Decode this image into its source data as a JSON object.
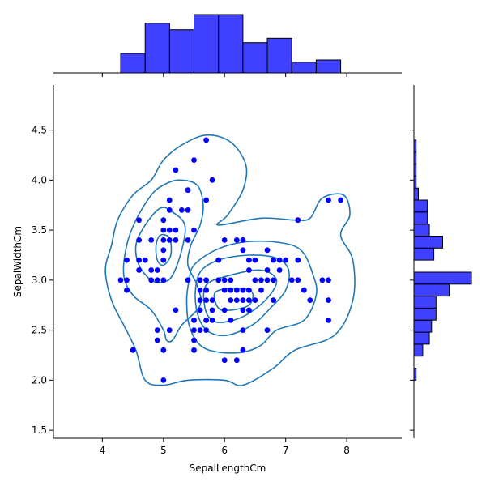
{
  "chart_data": {
    "type": "scatter",
    "xlabel": "SepalLengthCm",
    "ylabel": "SepalWidthCm",
    "xlim": [
      3.2,
      8.9
    ],
    "ylim": [
      1.42,
      4.95
    ],
    "x_ticks": [
      "4",
      "5",
      "6",
      "7",
      "8"
    ],
    "y_ticks": [
      "1.5",
      "2.0",
      "2.5",
      "3.0",
      "3.5",
      "4.0",
      "4.5"
    ],
    "point_color": "#0000ff",
    "contour_color": "#1f77b4",
    "hist_color": "#0000ff",
    "points": [
      [
        5.7,
        4.4
      ],
      [
        5.5,
        4.2
      ],
      [
        5.2,
        4.1
      ],
      [
        5.8,
        4.0
      ],
      [
        5.4,
        3.9
      ],
      [
        5.1,
        3.8
      ],
      [
        5.7,
        3.8
      ],
      [
        7.7,
        3.8
      ],
      [
        7.9,
        3.8
      ],
      [
        5.1,
        3.7
      ],
      [
        5.3,
        3.7
      ],
      [
        5.4,
        3.7
      ],
      [
        4.6,
        3.6
      ],
      [
        5.0,
        3.6
      ],
      [
        7.2,
        3.6
      ],
      [
        5.0,
        3.5
      ],
      [
        5.1,
        3.5
      ],
      [
        5.2,
        3.5
      ],
      [
        5.5,
        3.5
      ],
      [
        4.6,
        3.4
      ],
      [
        4.8,
        3.4
      ],
      [
        5.0,
        3.4
      ],
      [
        5.1,
        3.4
      ],
      [
        5.2,
        3.4
      ],
      [
        5.4,
        3.4
      ],
      [
        6.0,
        3.4
      ],
      [
        6.2,
        3.4
      ],
      [
        6.3,
        3.4
      ],
      [
        5.0,
        3.3
      ],
      [
        6.3,
        3.3
      ],
      [
        6.7,
        3.3
      ],
      [
        4.4,
        3.2
      ],
      [
        4.6,
        3.2
      ],
      [
        4.7,
        3.2
      ],
      [
        5.0,
        3.2
      ],
      [
        5.9,
        3.2
      ],
      [
        6.4,
        3.2
      ],
      [
        6.5,
        3.2
      ],
      [
        6.8,
        3.2
      ],
      [
        6.9,
        3.2
      ],
      [
        7.0,
        3.2
      ],
      [
        7.2,
        3.2
      ],
      [
        4.6,
        3.1
      ],
      [
        4.8,
        3.1
      ],
      [
        4.9,
        3.1
      ],
      [
        6.4,
        3.1
      ],
      [
        6.7,
        3.1
      ],
      [
        6.9,
        3.1
      ],
      [
        4.3,
        3.0
      ],
      [
        4.4,
        3.0
      ],
      [
        4.8,
        3.0
      ],
      [
        4.9,
        3.0
      ],
      [
        5.0,
        3.0
      ],
      [
        5.4,
        3.0
      ],
      [
        5.6,
        3.0
      ],
      [
        5.7,
        3.0
      ],
      [
        5.9,
        3.0
      ],
      [
        6.0,
        3.0
      ],
      [
        6.1,
        3.0
      ],
      [
        6.5,
        3.0
      ],
      [
        6.6,
        3.0
      ],
      [
        6.7,
        3.0
      ],
      [
        6.8,
        3.0
      ],
      [
        7.1,
        3.0
      ],
      [
        7.2,
        3.0
      ],
      [
        7.6,
        3.0
      ],
      [
        7.7,
        3.0
      ],
      [
        4.4,
        2.9
      ],
      [
        5.6,
        2.9
      ],
      [
        5.7,
        2.9
      ],
      [
        6.0,
        2.9
      ],
      [
        6.1,
        2.9
      ],
      [
        6.2,
        2.9
      ],
      [
        6.3,
        2.9
      ],
      [
        6.4,
        2.9
      ],
      [
        6.6,
        2.9
      ],
      [
        7.3,
        2.9
      ],
      [
        5.6,
        2.8
      ],
      [
        5.7,
        2.8
      ],
      [
        5.8,
        2.8
      ],
      [
        6.1,
        2.8
      ],
      [
        6.2,
        2.8
      ],
      [
        6.3,
        2.8
      ],
      [
        6.4,
        2.8
      ],
      [
        6.5,
        2.8
      ],
      [
        6.8,
        2.8
      ],
      [
        7.4,
        2.8
      ],
      [
        7.7,
        2.8
      ],
      [
        5.2,
        2.7
      ],
      [
        5.6,
        2.7
      ],
      [
        5.8,
        2.7
      ],
      [
        6.0,
        2.7
      ],
      [
        6.3,
        2.7
      ],
      [
        6.4,
        2.7
      ],
      [
        5.5,
        2.6
      ],
      [
        5.7,
        2.6
      ],
      [
        5.8,
        2.6
      ],
      [
        6.1,
        2.6
      ],
      [
        7.7,
        2.6
      ],
      [
        4.9,
        2.5
      ],
      [
        5.1,
        2.5
      ],
      [
        5.5,
        2.5
      ],
      [
        5.6,
        2.5
      ],
      [
        5.7,
        2.5
      ],
      [
        6.3,
        2.5
      ],
      [
        6.7,
        2.5
      ],
      [
        4.9,
        2.4
      ],
      [
        5.5,
        2.4
      ],
      [
        4.5,
        2.3
      ],
      [
        5.0,
        2.3
      ],
      [
        5.5,
        2.3
      ],
      [
        6.3,
        2.3
      ],
      [
        6.0,
        2.2
      ],
      [
        6.2,
        2.2
      ],
      [
        5.0,
        2.0
      ]
    ],
    "x_hist": {
      "bins": [
        [
          4.3,
          4.7
        ],
        [
          4.7,
          5.1
        ],
        [
          5.1,
          5.5
        ],
        [
          5.5,
          5.9
        ],
        [
          5.9,
          6.3
        ],
        [
          6.3,
          6.7
        ],
        [
          6.7,
          7.1
        ],
        [
          7.1,
          7.5
        ],
        [
          7.5,
          7.9
        ]
      ],
      "counts": [
        9,
        23,
        20,
        27,
        27,
        14,
        16,
        5,
        6
      ]
    },
    "y_hist": {
      "bins": [
        [
          2.0,
          2.12
        ],
        [
          2.12,
          2.24
        ],
        [
          2.24,
          2.36
        ],
        [
          2.36,
          2.48
        ],
        [
          2.48,
          2.6
        ],
        [
          2.6,
          2.72
        ],
        [
          2.72,
          2.84
        ],
        [
          2.84,
          2.96
        ],
        [
          2.96,
          3.08
        ],
        [
          3.08,
          3.2
        ],
        [
          3.2,
          3.32
        ],
        [
          3.32,
          3.44
        ],
        [
          3.44,
          3.56
        ],
        [
          3.56,
          3.68
        ],
        [
          3.68,
          3.8
        ],
        [
          3.8,
          3.92
        ],
        [
          3.92,
          4.04
        ],
        [
          4.04,
          4.16
        ],
        [
          4.16,
          4.28
        ],
        [
          4.28,
          4.4
        ]
      ],
      "counts": [
        1,
        0,
        4,
        7,
        8,
        10,
        10,
        16,
        26,
        0,
        9,
        13,
        7,
        6,
        6,
        2,
        1,
        1,
        1,
        1
      ]
    },
    "contours": [
      [
        [
          5.7,
          4.45
        ],
        [
          6.1,
          4.38
        ],
        [
          6.35,
          4.15
        ],
        [
          6.3,
          3.9
        ],
        [
          6.05,
          3.65
        ],
        [
          5.9,
          3.55
        ],
        [
          6.6,
          3.62
        ],
        [
          7.15,
          3.6
        ],
        [
          7.4,
          3.62
        ],
        [
          7.6,
          3.82
        ],
        [
          7.95,
          3.85
        ],
        [
          8.05,
          3.65
        ],
        [
          7.9,
          3.45
        ],
        [
          8.1,
          3.2
        ],
        [
          8.1,
          2.8
        ],
        [
          7.8,
          2.45
        ],
        [
          7.15,
          2.3
        ],
        [
          6.8,
          2.12
        ],
        [
          6.3,
          1.95
        ],
        [
          6.0,
          2.0
        ],
        [
          5.4,
          2.0
        ],
        [
          5.0,
          1.95
        ],
        [
          4.7,
          2.0
        ],
        [
          4.55,
          2.3
        ],
        [
          4.35,
          2.55
        ],
        [
          4.15,
          2.8
        ],
        [
          4.05,
          3.1
        ],
        [
          4.15,
          3.35
        ],
        [
          4.25,
          3.6
        ],
        [
          4.5,
          3.85
        ],
        [
          4.8,
          4.0
        ],
        [
          5.0,
          4.2
        ],
        [
          5.3,
          4.35
        ],
        [
          5.7,
          4.45
        ]
      ],
      [
        [
          5.0,
          3.95
        ],
        [
          5.25,
          4.0
        ],
        [
          5.55,
          3.95
        ],
        [
          5.65,
          3.75
        ],
        [
          5.6,
          3.55
        ],
        [
          5.45,
          3.35
        ],
        [
          5.4,
          3.15
        ],
        [
          5.55,
          2.95
        ],
        [
          5.6,
          2.75
        ],
        [
          5.3,
          2.55
        ],
        [
          5.15,
          2.4
        ],
        [
          5.05,
          2.4
        ],
        [
          5.0,
          2.5
        ],
        [
          4.8,
          2.7
        ],
        [
          4.5,
          2.85
        ],
        [
          4.35,
          3.05
        ],
        [
          4.4,
          3.35
        ],
        [
          4.55,
          3.6
        ],
        [
          4.8,
          3.85
        ],
        [
          5.0,
          3.95
        ]
      ],
      [
        [
          5.5,
          3.15
        ],
        [
          5.85,
          3.3
        ],
        [
          6.3,
          3.38
        ],
        [
          6.85,
          3.38
        ],
        [
          7.25,
          3.3
        ],
        [
          7.45,
          3.05
        ],
        [
          7.5,
          2.85
        ],
        [
          7.3,
          2.6
        ],
        [
          6.85,
          2.5
        ],
        [
          6.6,
          2.35
        ],
        [
          6.3,
          2.28
        ],
        [
          5.9,
          2.28
        ],
        [
          5.6,
          2.35
        ],
        [
          5.42,
          2.55
        ],
        [
          5.38,
          2.8
        ],
        [
          5.42,
          3.0
        ],
        [
          5.5,
          3.15
        ]
      ],
      [
        [
          4.95,
          3.72
        ],
        [
          5.15,
          3.68
        ],
        [
          5.35,
          3.55
        ],
        [
          5.3,
          3.3
        ],
        [
          5.15,
          3.05
        ],
        [
          5.0,
          2.98
        ],
        [
          4.8,
          3.0
        ],
        [
          4.6,
          3.15
        ],
        [
          4.55,
          3.35
        ],
        [
          4.7,
          3.55
        ],
        [
          4.95,
          3.72
        ]
      ],
      [
        [
          5.6,
          3.08
        ],
        [
          5.9,
          3.2
        ],
        [
          6.4,
          3.25
        ],
        [
          6.85,
          3.22
        ],
        [
          7.05,
          3.1
        ],
        [
          7.0,
          2.9
        ],
        [
          6.75,
          2.72
        ],
        [
          6.45,
          2.55
        ],
        [
          6.05,
          2.45
        ],
        [
          5.75,
          2.48
        ],
        [
          5.58,
          2.62
        ],
        [
          5.52,
          2.85
        ],
        [
          5.6,
          3.08
        ]
      ],
      [
        [
          5.7,
          2.95
        ],
        [
          6.1,
          3.05
        ],
        [
          6.6,
          3.1
        ],
        [
          6.85,
          3.0
        ],
        [
          6.7,
          2.82
        ],
        [
          6.35,
          2.65
        ],
        [
          6.0,
          2.58
        ],
        [
          5.8,
          2.6
        ],
        [
          5.68,
          2.72
        ],
        [
          5.7,
          2.95
        ]
      ],
      [
        [
          4.95,
          3.45
        ],
        [
          5.1,
          3.42
        ],
        [
          5.12,
          3.25
        ],
        [
          5.0,
          3.15
        ],
        [
          4.9,
          3.2
        ],
        [
          4.88,
          3.35
        ],
        [
          4.95,
          3.45
        ]
      ],
      [
        [
          5.85,
          2.88
        ],
        [
          6.2,
          2.92
        ],
        [
          6.45,
          2.88
        ],
        [
          6.4,
          2.75
        ],
        [
          6.1,
          2.7
        ],
        [
          5.9,
          2.72
        ],
        [
          5.85,
          2.88
        ]
      ]
    ]
  }
}
